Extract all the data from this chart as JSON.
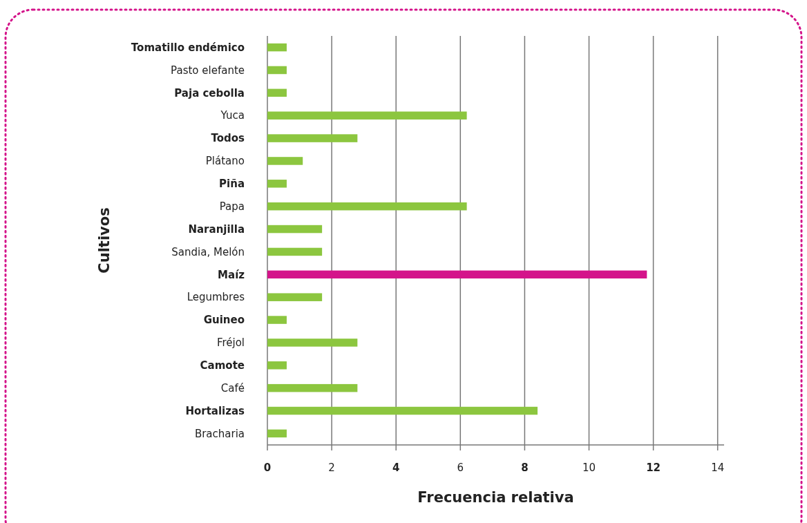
{
  "chart_data": {
    "type": "bar",
    "orientation": "horizontal",
    "xlabel": "Frecuencia relativa",
    "ylabel": "Cultivos",
    "categories": [
      "Tomatillo endémico",
      "Pasto elefante",
      "Paja cebolla",
      "Yuca",
      "Todos",
      "Plátano",
      "Piña",
      "Papa",
      "Naranjilla",
      "Sandia, Melón",
      "Maíz",
      "Legumbres",
      "Guineo",
      "Fréjol",
      "Camote",
      "Café",
      "Hortalizas",
      "Bracharia"
    ],
    "values": [
      0.6,
      0.6,
      0.6,
      6.2,
      2.8,
      1.1,
      0.6,
      6.2,
      1.7,
      1.7,
      11.8,
      1.7,
      0.6,
      2.8,
      0.6,
      2.8,
      8.4,
      0.6
    ],
    "colors": [
      "#8cc63f",
      "#8cc63f",
      "#8cc63f",
      "#8cc63f",
      "#8cc63f",
      "#8cc63f",
      "#8cc63f",
      "#8cc63f",
      "#8cc63f",
      "#8cc63f",
      "#d4148a",
      "#8cc63f",
      "#8cc63f",
      "#8cc63f",
      "#8cc63f",
      "#8cc63f",
      "#8cc63f",
      "#8cc63f"
    ],
    "xlim": [
      0,
      14.2
    ],
    "xticks": [
      0,
      2,
      4,
      6,
      8,
      10,
      12,
      14
    ],
    "grid": "x"
  }
}
